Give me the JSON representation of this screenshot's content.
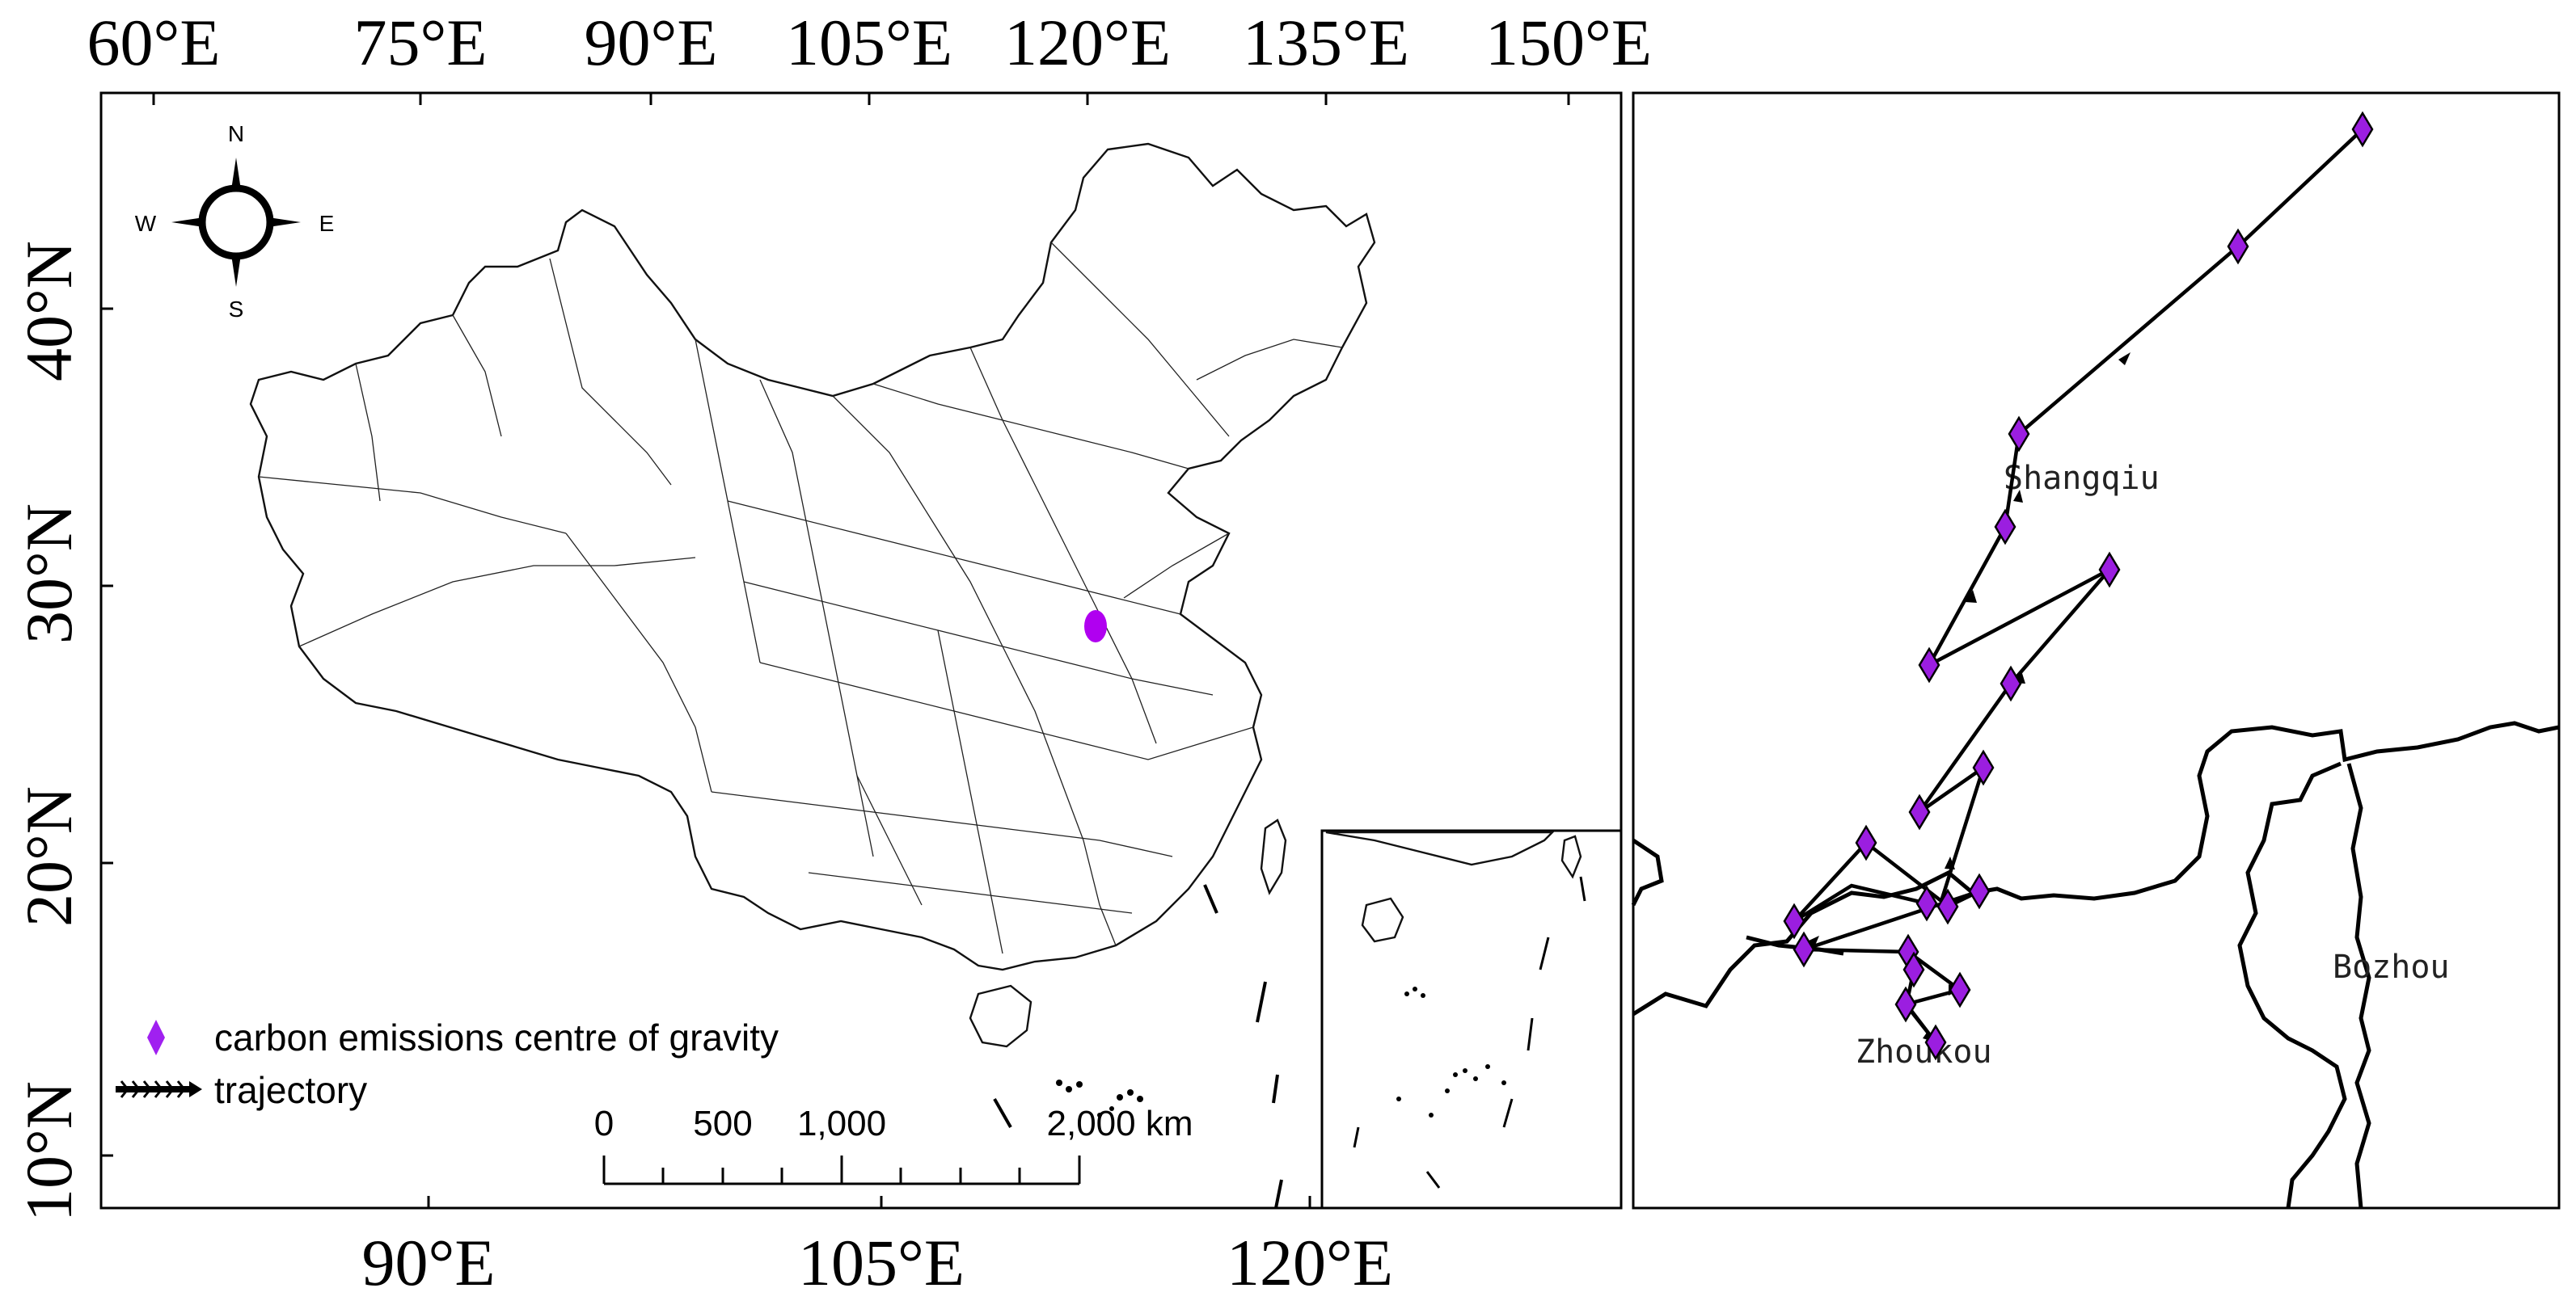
{
  "main_map": {
    "top_ticks": [
      "60°E",
      "75°E",
      "90°E",
      "105°E",
      "120°E",
      "135°E",
      "150°E"
    ],
    "left_ticks": [
      "40°N",
      "30°N",
      "20°N",
      "10°N"
    ],
    "bottom_ticks": [
      "90°E",
      "105°E",
      "120°E"
    ],
    "compass": {
      "n": "N",
      "s": "S",
      "e": "E",
      "w": "W"
    },
    "legend": {
      "gravity_label": "carbon emissions centre of gravity",
      "trajectory_label": "trajectory",
      "marker_color": "#a020f0"
    },
    "scale_bar": {
      "labels": [
        "0",
        "500",
        "1,000",
        "2,000 km"
      ]
    }
  },
  "detail_map": {
    "city_labels": {
      "shangqiu": "Shangqiu",
      "zhoukou": "Zhoukou",
      "bozhou": "Bozhou"
    },
    "marker_color": "#9b1ee0"
  }
}
